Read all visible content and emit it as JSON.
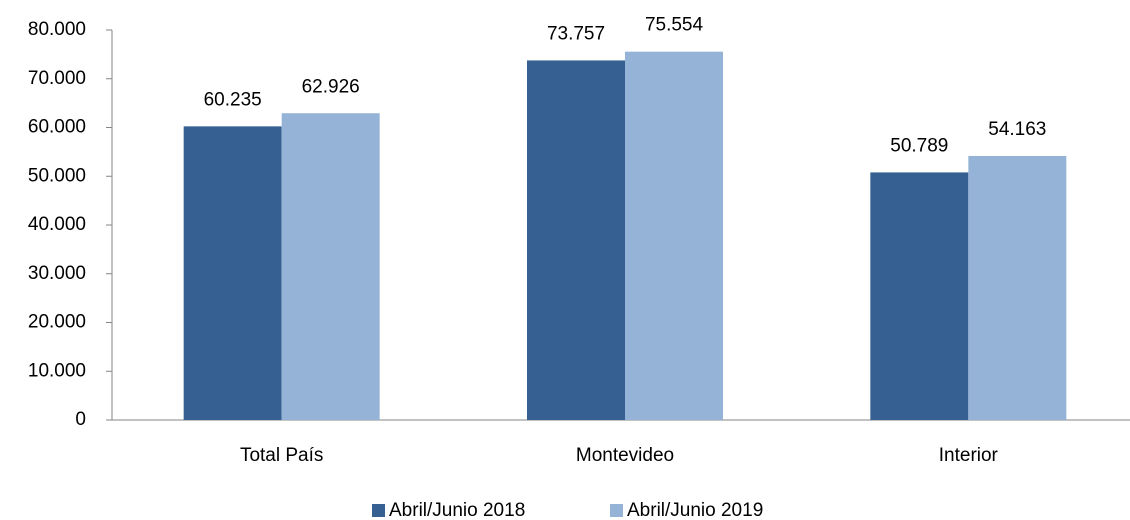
{
  "chart_data": {
    "type": "bar",
    "categories": [
      "Total País",
      "Montevideo",
      "Interior"
    ],
    "series": [
      {
        "name": "Abril/Junio 2018",
        "color": "#366092",
        "values": [
          60235,
          73757,
          50789
        ],
        "value_labels": [
          "60.235",
          "73.757",
          "50.789"
        ]
      },
      {
        "name": "Abril/Junio 2019",
        "color": "#95b3d7",
        "values": [
          62926,
          75554,
          54163
        ],
        "value_labels": [
          "62.926",
          "75.554",
          "54.163"
        ]
      }
    ],
    "ylim": [
      0,
      80000
    ],
    "yticks": [
      0,
      {
        "value": 10000,
        "label": "10.000"
      },
      {
        "value": 20000,
        "label": "20.000"
      },
      {
        "value": 30000,
        "label": "30.000"
      },
      {
        "value": 40000,
        "label": "40.000"
      },
      {
        "value": 50000,
        "label": "50.000"
      },
      {
        "value": 60000,
        "label": "60.000"
      },
      {
        "value": 70000,
        "label": "70.000"
      },
      {
        "value": 80000,
        "label": "80.000"
      }
    ],
    "grid": false,
    "legend": "bottom"
  }
}
